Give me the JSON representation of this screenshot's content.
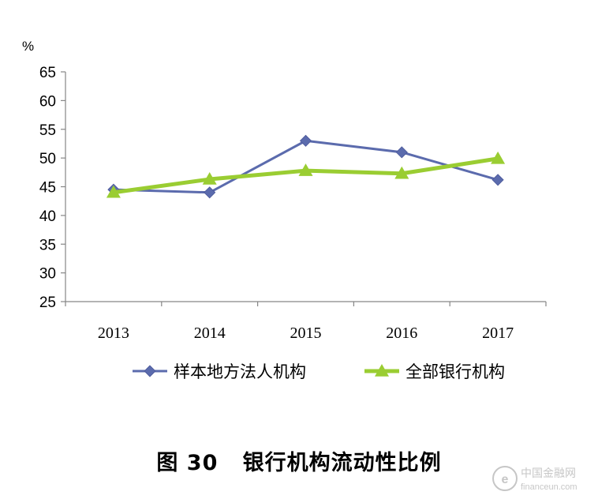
{
  "chart_data": {
    "type": "line",
    "unit_label": "%",
    "categories": [
      "2013",
      "2014",
      "2015",
      "2016",
      "2017"
    ],
    "ylim": [
      25,
      65
    ],
    "yticks": [
      25,
      30,
      35,
      40,
      45,
      50,
      55,
      60,
      65
    ],
    "grid": false,
    "legend_position": "bottom",
    "series": [
      {
        "name": "样本地方法人机构",
        "values": [
          44.5,
          44.0,
          53.0,
          51.0,
          46.2
        ],
        "color": "#5b6bad",
        "marker": "diamond"
      },
      {
        "name": "全部银行机构",
        "values": [
          44.0,
          46.3,
          47.8,
          47.3,
          49.9
        ],
        "color": "#9acd32",
        "marker": "triangle"
      }
    ]
  },
  "caption": "图 30   银行机构流动性比例",
  "watermark": {
    "text_cn": "中国金融网",
    "text_en": "financeun.com"
  }
}
